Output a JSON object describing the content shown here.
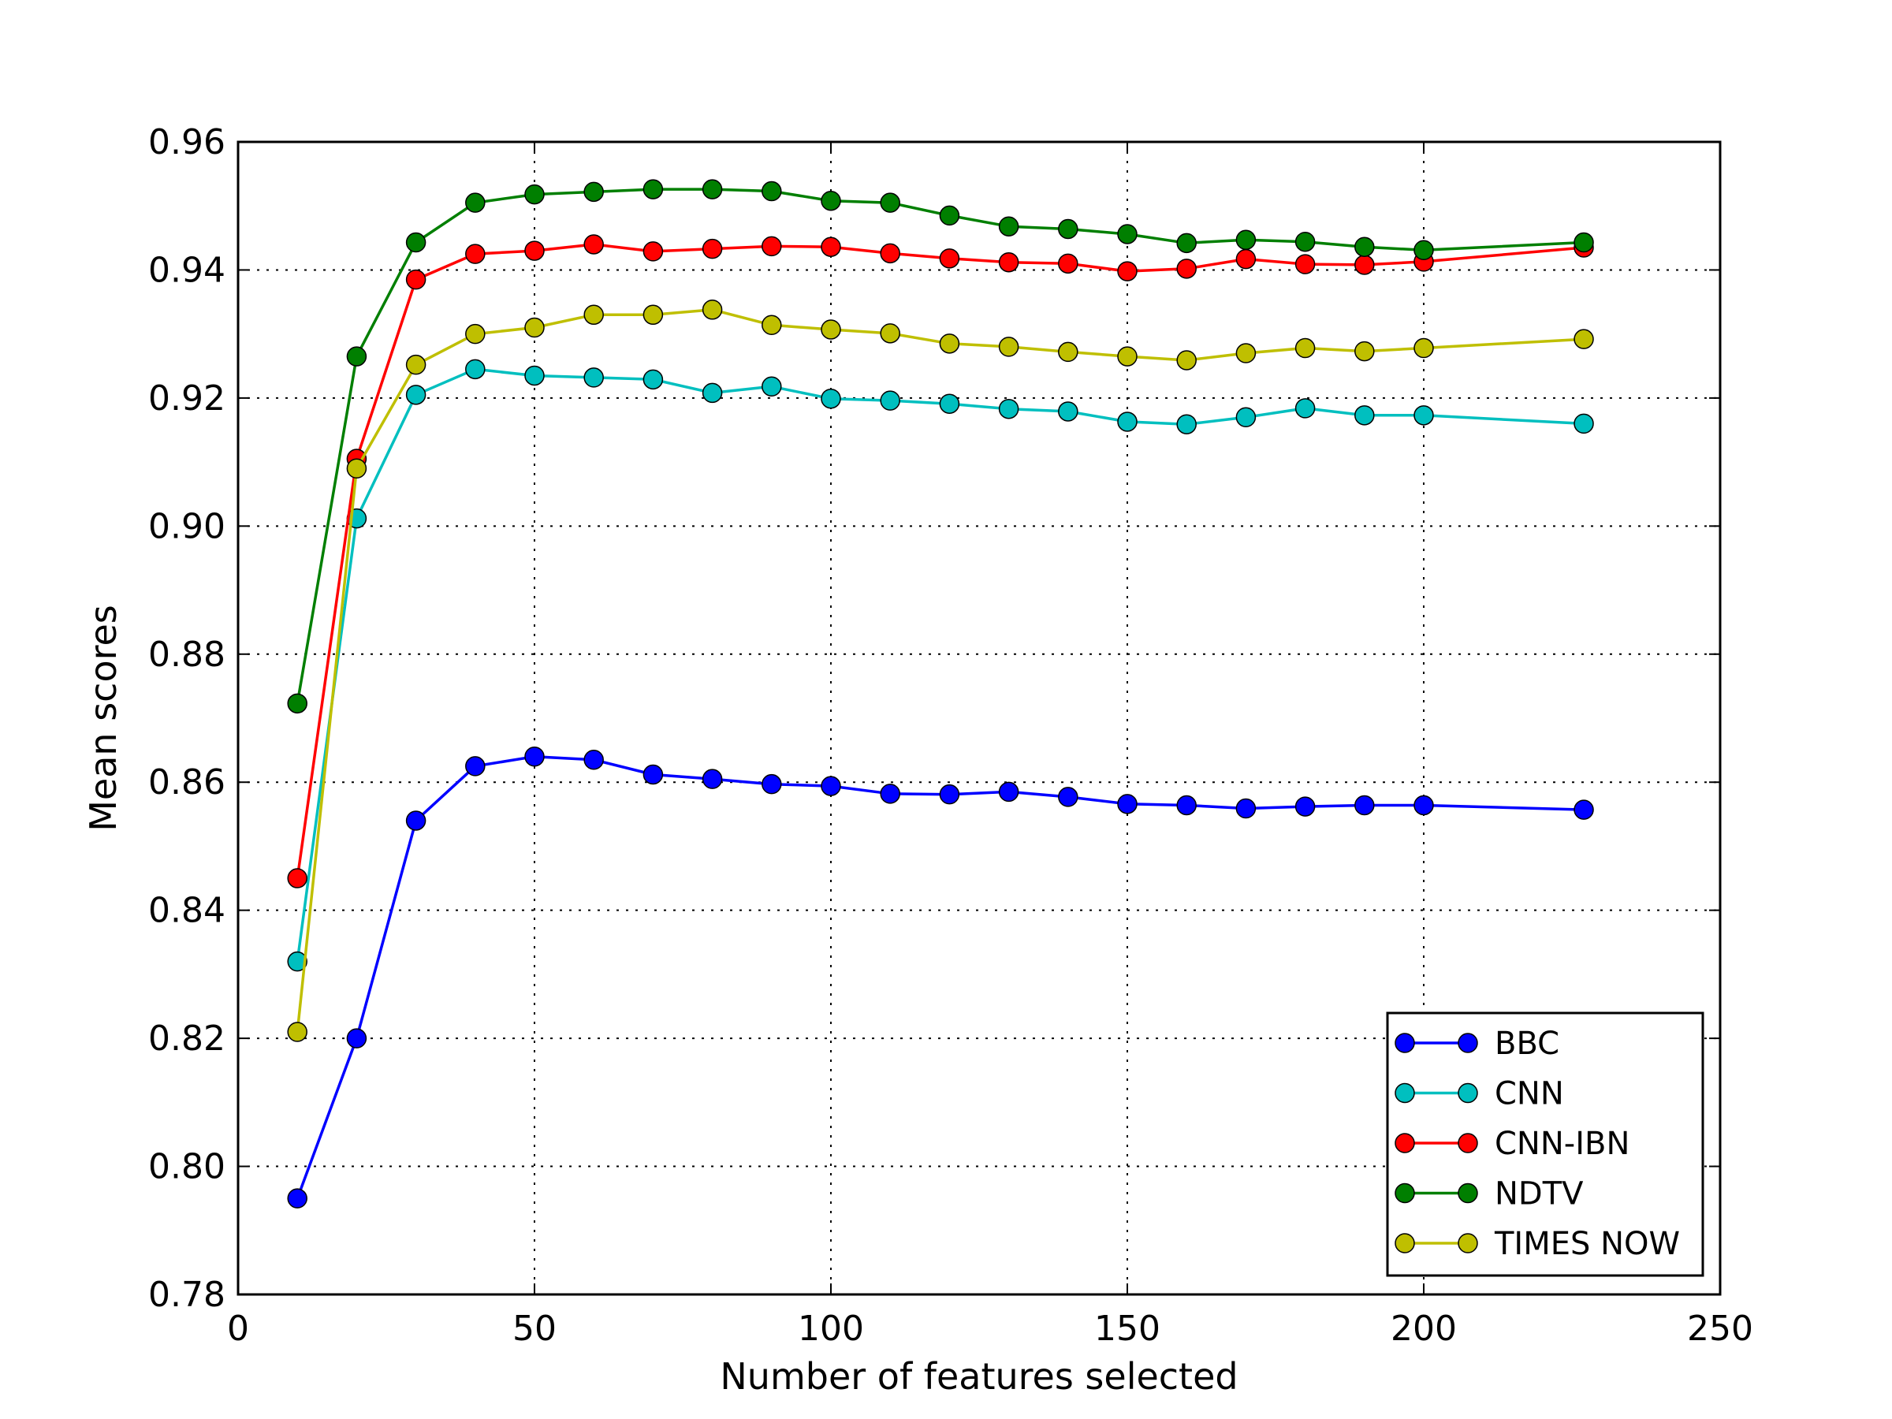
{
  "chart_data": {
    "type": "line",
    "title": "",
    "xlabel": "Number of features selected",
    "ylabel": "Mean scores",
    "xlim": [
      0,
      250
    ],
    "ylim": [
      0.78,
      0.96
    ],
    "xticks": [
      0,
      50,
      100,
      150,
      200,
      250
    ],
    "yticks": [
      0.78,
      0.8,
      0.82,
      0.84,
      0.86,
      0.88,
      0.9,
      0.92,
      0.94,
      0.96
    ],
    "xtick_labels": [
      "0",
      "50",
      "100",
      "150",
      "200",
      "250"
    ],
    "ytick_labels": [
      "0.78",
      "0.80",
      "0.82",
      "0.84",
      "0.86",
      "0.88",
      "0.90",
      "0.92",
      "0.94",
      "0.96"
    ],
    "grid": true,
    "legend_position": "bottom-right",
    "x": [
      10,
      20,
      30,
      40,
      50,
      60,
      70,
      80,
      90,
      100,
      110,
      120,
      130,
      140,
      150,
      160,
      170,
      180,
      190,
      200,
      227
    ],
    "series": [
      {
        "name": "BBC",
        "color": "#0000ff",
        "values": [
          0.795,
          0.82,
          0.854,
          0.8625,
          0.864,
          0.8635,
          0.8612,
          0.8605,
          0.8597,
          0.8594,
          0.8582,
          0.8581,
          0.8585,
          0.8577,
          0.8566,
          0.8564,
          0.8559,
          0.8562,
          0.8564,
          0.8564,
          0.8557
        ]
      },
      {
        "name": "CNN",
        "color": "#00bfbf",
        "values": [
          0.832,
          0.9012,
          0.9205,
          0.9245,
          0.9235,
          0.9232,
          0.9229,
          0.9208,
          0.9218,
          0.9199,
          0.9196,
          0.9191,
          0.9183,
          0.9179,
          0.9163,
          0.9159,
          0.917,
          0.9184,
          0.9173,
          0.9173,
          0.916
        ]
      },
      {
        "name": "CNN-IBN",
        "color": "#ff0000",
        "values": [
          0.845,
          0.9105,
          0.9385,
          0.9425,
          0.943,
          0.944,
          0.9429,
          0.9433,
          0.9437,
          0.9436,
          0.9426,
          0.9418,
          0.9412,
          0.941,
          0.9398,
          0.9402,
          0.9417,
          0.9409,
          0.9408,
          0.9413,
          0.9435
        ]
      },
      {
        "name": "NDTV",
        "color": "#007f00",
        "values": [
          0.8723,
          0.9265,
          0.9443,
          0.9505,
          0.9518,
          0.9522,
          0.9526,
          0.9526,
          0.9523,
          0.9508,
          0.9505,
          0.9485,
          0.9468,
          0.9464,
          0.9456,
          0.9442,
          0.9447,
          0.9444,
          0.9436,
          0.9431,
          0.9443
        ]
      },
      {
        "name": "TIMES NOW",
        "color": "#bfbf00",
        "values": [
          0.821,
          0.909,
          0.9252,
          0.93,
          0.931,
          0.933,
          0.933,
          0.9338,
          0.9314,
          0.9307,
          0.9301,
          0.9285,
          0.928,
          0.9272,
          0.9265,
          0.9259,
          0.927,
          0.9278,
          0.9273,
          0.9278,
          0.9292
        ]
      }
    ]
  }
}
